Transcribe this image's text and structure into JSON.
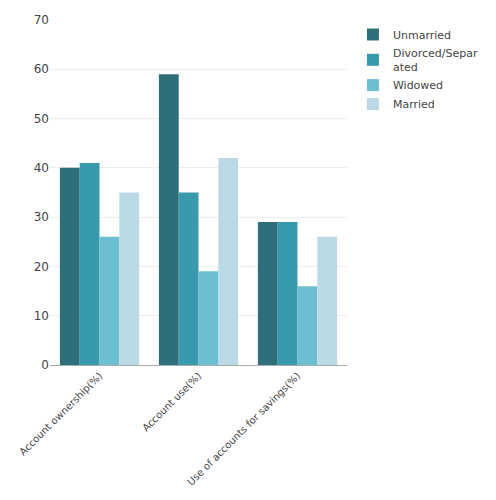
{
  "chart_data": {
    "type": "bar",
    "categories": [
      "Account ownership(%)",
      "Account use(%)",
      "Use of accounts for savings(%)"
    ],
    "series": [
      {
        "name": "Unmarried",
        "color": "#2e6f7a",
        "values": [
          40,
          59,
          29
        ]
      },
      {
        "name": "Divorced/Separ\nated",
        "color": "#3a9aad",
        "values": [
          41,
          35,
          29
        ]
      },
      {
        "name": "Widowed",
        "color": "#6bbfd0",
        "values": [
          26,
          19,
          16
        ]
      },
      {
        "name": "Married",
        "color": "#bad9e5",
        "values": [
          35,
          42,
          26
        ]
      }
    ],
    "ylim": [
      0,
      70
    ],
    "yticks": [
      0,
      10,
      20,
      30,
      40,
      50,
      60,
      70
    ],
    "grid": true,
    "legend": "upper right"
  }
}
